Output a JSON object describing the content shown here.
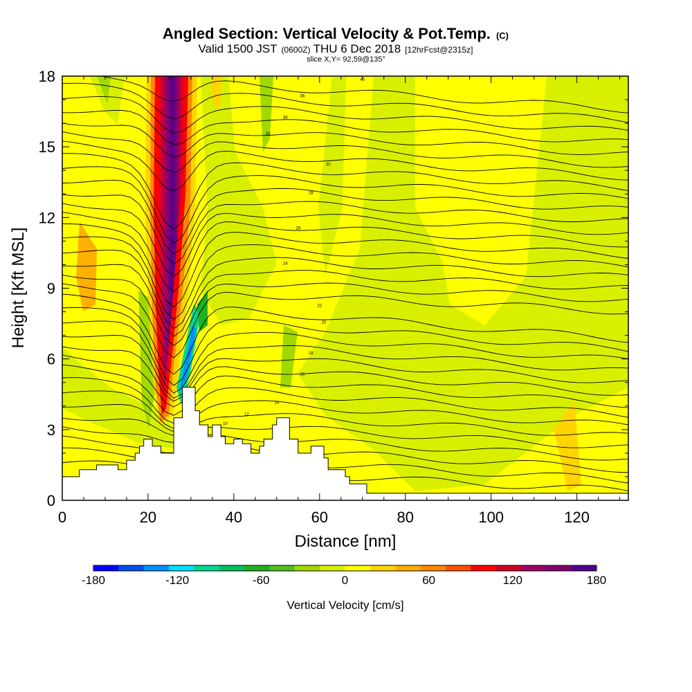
{
  "chart_data": {
    "type": "heatmap",
    "title": "Angled Section: Vertical Velocity & Pot.Temp.",
    "title_unit": "(C)",
    "subtitle_prefix": "Valid 1500 JST",
    "subtitle_utc": "(0600Z)",
    "subtitle_date": "THU 6 Dec 2018",
    "subtitle_fcst": "[12hrFcst@2315z]",
    "slice_label": "slice X,Y= 92,59@135°",
    "xlabel": "Distance [nm]",
    "ylabel": "Height [Kft MSL]",
    "xlim": [
      0,
      132
    ],
    "ylim": [
      0,
      18
    ],
    "x_ticks": [
      "0",
      "20",
      "40",
      "60",
      "80",
      "100",
      "120"
    ],
    "y_ticks": [
      "0",
      "3",
      "6",
      "9",
      "12",
      "15",
      "18"
    ],
    "colorbar": {
      "label": "Vertical Velocity [cm/s]",
      "ticks": [
        "-180",
        "-120",
        "-60",
        "0",
        "60",
        "120",
        "180"
      ],
      "range": [
        -180,
        180
      ],
      "colors": [
        "#0000ff",
        "#0050f0",
        "#0090ff",
        "#00e0ff",
        "#00d890",
        "#00c060",
        "#20b020",
        "#50c020",
        "#a0d800",
        "#d8f000",
        "#ffff00",
        "#ffd400",
        "#ffb000",
        "#ff8800",
        "#ff5000",
        "#ff0000",
        "#d00020",
        "#a00060",
        "#800070",
        "#500090"
      ]
    },
    "contour_labels": [
      "40",
      "36",
      "34",
      "32",
      "30",
      "28",
      "26",
      "24",
      "22",
      "20",
      "18",
      "16",
      "14",
      "12",
      "10"
    ],
    "terrain": [
      [
        0,
        1.0
      ],
      [
        4,
        1.0
      ],
      [
        4,
        1.3
      ],
      [
        8,
        1.3
      ],
      [
        8,
        1.5
      ],
      [
        13,
        1.5
      ],
      [
        13,
        1.3
      ],
      [
        15,
        1.3
      ],
      [
        15,
        1.7
      ],
      [
        17,
        1.7
      ],
      [
        17,
        2.0
      ],
      [
        18,
        2.0
      ],
      [
        18,
        2.3
      ],
      [
        19,
        2.3
      ],
      [
        19,
        2.6
      ],
      [
        21,
        2.6
      ],
      [
        21,
        2.3
      ],
      [
        23,
        2.3
      ],
      [
        23,
        2.0
      ],
      [
        26,
        2.0
      ],
      [
        26,
        3.5
      ],
      [
        28,
        3.5
      ],
      [
        28,
        4.8
      ],
      [
        31,
        4.8
      ],
      [
        31,
        3.8
      ],
      [
        32,
        3.8
      ],
      [
        32,
        3.2
      ],
      [
        34,
        3.2
      ],
      [
        34,
        2.7
      ],
      [
        35,
        2.7
      ],
      [
        35,
        3.2
      ],
      [
        37,
        3.2
      ],
      [
        37,
        2.7
      ],
      [
        38,
        2.7
      ],
      [
        38,
        2.4
      ],
      [
        40,
        2.4
      ],
      [
        40,
        2.6
      ],
      [
        42,
        2.6
      ],
      [
        42,
        2.4
      ],
      [
        44,
        2.4
      ],
      [
        44,
        2.0
      ],
      [
        46,
        2.0
      ],
      [
        46,
        2.3
      ],
      [
        47,
        2.3
      ],
      [
        47,
        2.6
      ],
      [
        49,
        2.6
      ],
      [
        49,
        3.2
      ],
      [
        50,
        3.2
      ],
      [
        50,
        3.5
      ],
      [
        53,
        3.5
      ],
      [
        53,
        2.6
      ],
      [
        55,
        2.6
      ],
      [
        55,
        2.0
      ],
      [
        58,
        2.0
      ],
      [
        58,
        2.3
      ],
      [
        61,
        2.3
      ],
      [
        61,
        1.8
      ],
      [
        62,
        1.8
      ],
      [
        62,
        1.3
      ],
      [
        66,
        1.3
      ],
      [
        66,
        1.0
      ],
      [
        67,
        1.0
      ],
      [
        67,
        0.7
      ],
      [
        71,
        0.7
      ],
      [
        71,
        0.3
      ],
      [
        132,
        0.3
      ]
    ],
    "velocity_regions": [
      {
        "name": "updraft-core",
        "value": 170
      },
      {
        "name": "updraft-flank",
        "value": 120
      },
      {
        "name": "downdraft",
        "value": -110
      },
      {
        "name": "weak-sink-east",
        "value": -20
      },
      {
        "name": "weak-rise-east",
        "value": 10
      }
    ]
  }
}
